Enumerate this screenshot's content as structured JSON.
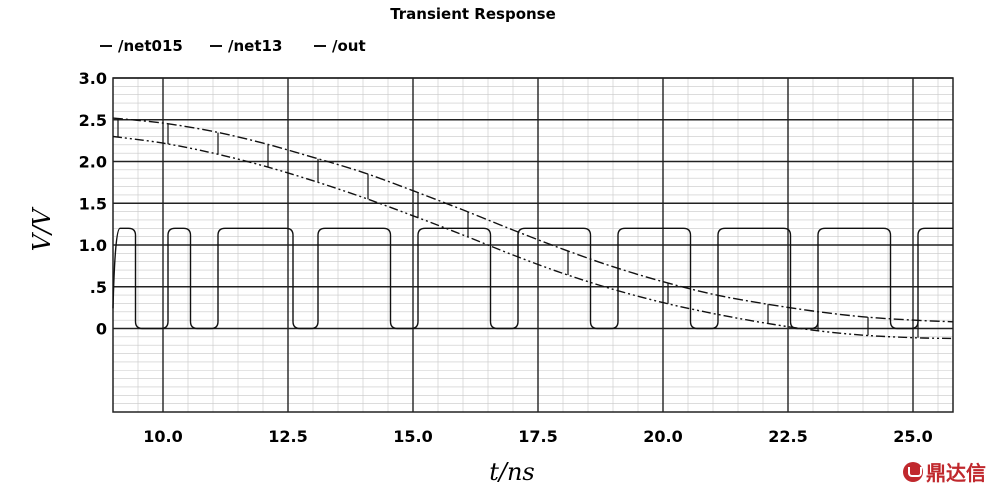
{
  "chart_data": {
    "type": "line",
    "title": "Transient Response",
    "xlabel": "t/ns",
    "ylabel": "V/V",
    "xlim": [
      9.0,
      25.8
    ],
    "ylim": [
      -1.0,
      3.0
    ],
    "x_ticks": [
      10.0,
      12.5,
      15.0,
      17.5,
      20.0,
      22.5,
      25.0
    ],
    "x_tick_labels": [
      "10.0",
      "12.5",
      "15.0",
      "17.5",
      "20.0",
      "22.5",
      "25.0"
    ],
    "y_ticks": [
      0,
      0.5,
      1.0,
      1.5,
      2.0,
      2.5,
      3.0
    ],
    "y_tick_labels": [
      "0",
      ".5",
      "1.0",
      "1.5",
      "2.0",
      "2.5",
      "3.0"
    ],
    "grid": true,
    "legend_position": "top-left",
    "series": [
      {
        "name": "/net015",
        "style": "dash-dot",
        "x": [
          9.0,
          10.0,
          11.0,
          12.0,
          13.0,
          14.0,
          15.0,
          16.0,
          17.0,
          18.0,
          19.0,
          20.0,
          21.0,
          22.0,
          23.0,
          24.0,
          25.0,
          25.8
        ],
        "y": [
          2.52,
          2.46,
          2.36,
          2.22,
          2.05,
          1.87,
          1.65,
          1.42,
          1.18,
          0.95,
          0.74,
          0.56,
          0.41,
          0.3,
          0.21,
          0.14,
          0.1,
          0.08
        ]
      },
      {
        "name": "/net13",
        "style": "dash-dot-dot",
        "x": [
          9.0,
          10.0,
          11.0,
          12.0,
          13.0,
          14.0,
          15.0,
          16.0,
          17.0,
          18.0,
          19.0,
          20.0,
          21.0,
          22.0,
          23.0,
          24.0,
          25.0,
          25.8
        ],
        "y": [
          2.3,
          2.22,
          2.1,
          1.95,
          1.77,
          1.57,
          1.35,
          1.12,
          0.88,
          0.66,
          0.47,
          0.31,
          0.18,
          0.07,
          -0.02,
          -0.08,
          -0.11,
          -0.12
        ]
      },
      {
        "name": "/out",
        "style": "solid",
        "type": "square-wave",
        "high": 1.2,
        "low": 0.0,
        "period": 2.0,
        "high_intervals": [
          [
            9.0,
            9.45
          ],
          [
            10.1,
            10.55
          ],
          [
            11.1,
            12.6
          ],
          [
            13.1,
            14.55
          ],
          [
            15.1,
            16.55
          ],
          [
            17.1,
            18.55
          ],
          [
            19.1,
            20.55
          ],
          [
            21.1,
            22.55
          ],
          [
            23.1,
            24.55
          ],
          [
            25.1,
            25.8
          ]
        ]
      }
    ]
  },
  "watermark": {
    "text": "鼎达信"
  }
}
